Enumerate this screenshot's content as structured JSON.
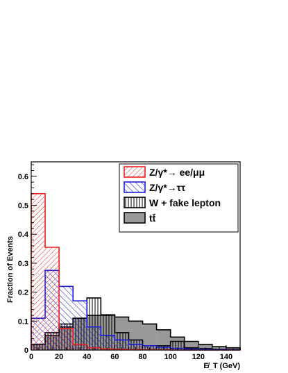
{
  "chart_data": {
    "type": "bar",
    "subtype": "stepped-histogram-overlay",
    "xlabel": "E̸_T (GeV)",
    "ylabel": "Fraction of Events",
    "xlim": [
      0,
      150
    ],
    "ylim": [
      0,
      0.65
    ],
    "bin_width": 10,
    "x_ticks": [
      "0",
      "20",
      "40",
      "60",
      "80",
      "100",
      "120",
      "140"
    ],
    "x_tick_values": [
      0,
      20,
      40,
      60,
      80,
      100,
      120,
      140
    ],
    "y_ticks": [
      "0",
      "0.1",
      "0.2",
      "0.3",
      "0.4",
      "0.5",
      "0.6"
    ],
    "y_tick_values": [
      0,
      0.1,
      0.2,
      0.3,
      0.4,
      0.5,
      0.6
    ],
    "grid": false,
    "legend_position": "top-right",
    "series": [
      {
        "name": "Z/γ*→ ee/μμ",
        "color": "#e8201e",
        "fill": "hatch-diagonal-dense",
        "values": [
          0.54,
          0.355,
          0.075,
          0.02,
          0.008,
          0.004,
          0.003,
          0.002,
          0.001,
          0.001,
          0.0,
          0.0,
          0.0,
          0.0,
          0.0
        ]
      },
      {
        "name": "Z/γ*→ττ",
        "color": "#1a1ad6",
        "fill": "hatch-diagonal",
        "values": [
          0.11,
          0.275,
          0.22,
          0.17,
          0.08,
          0.05,
          0.035,
          0.02,
          0.015,
          0.01,
          0.006,
          0.004,
          0.003,
          0.002,
          0.001
        ]
      },
      {
        "name": "W + fake lepton",
        "color": "#000000",
        "fill": "hatch-vertical",
        "values": [
          0.02,
          0.06,
          0.09,
          0.11,
          0.18,
          0.12,
          0.06,
          0.035,
          0.015,
          0.015,
          0.03,
          0.008,
          0.005,
          0.003,
          0.002
        ]
      },
      {
        "name": "tt̄",
        "color": "#999999",
        "fill": "solid",
        "values": [
          0.02,
          0.05,
          0.08,
          0.11,
          0.12,
          0.122,
          0.114,
          0.1,
          0.09,
          0.07,
          0.045,
          0.03,
          0.02,
          0.012,
          0.008
        ]
      }
    ]
  }
}
